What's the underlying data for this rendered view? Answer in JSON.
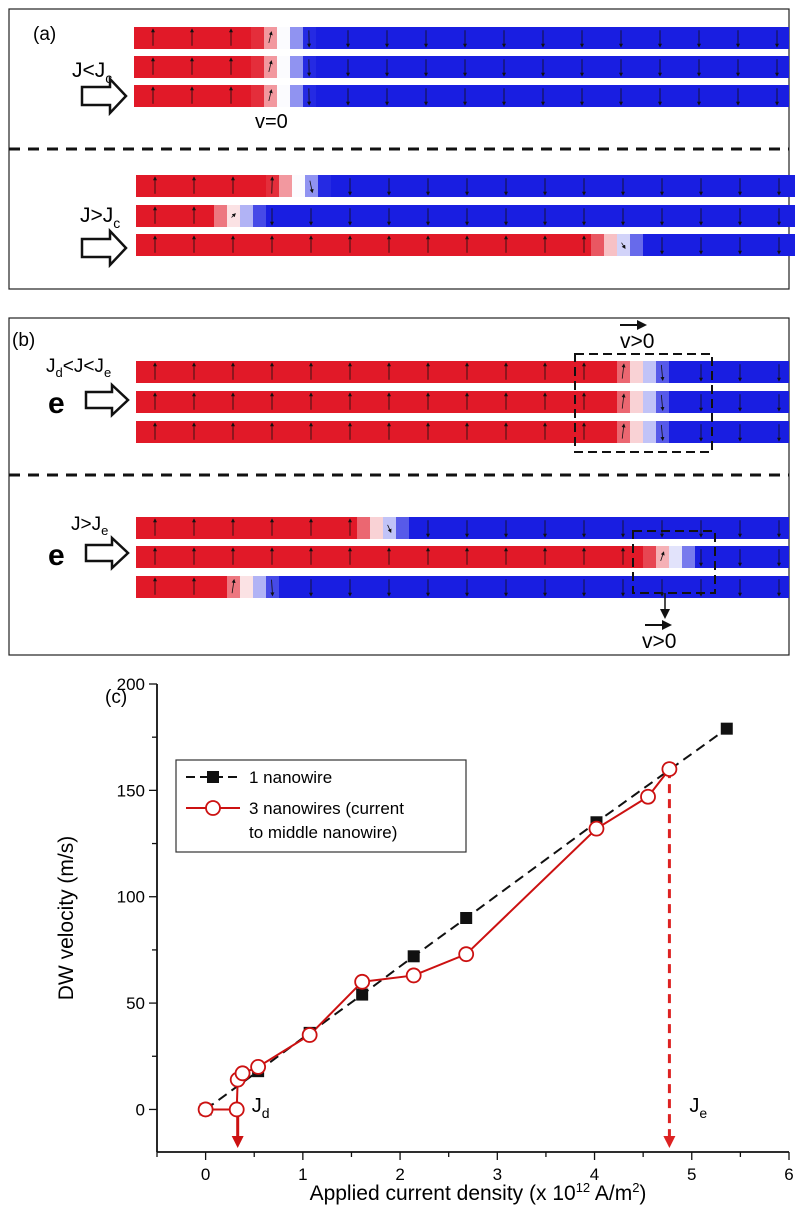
{
  "panel_a": {
    "label": "(a)",
    "top_current": {
      "main": "J<J",
      "sub": "c"
    },
    "bottom_current": {
      "main": "J>J",
      "sub": "c"
    },
    "velocity_label": "v=0"
  },
  "panel_b": {
    "label": "(b)",
    "top_current": {
      "p1": "J",
      "s1": "d",
      "p2": "<J<J",
      "s2": "e"
    },
    "bottom_current": {
      "main": "J>J",
      "sub": "e"
    },
    "electron_label": "e",
    "velocity_label": "v>0"
  },
  "chart_data": {
    "type": "line",
    "panel_label": "(c)",
    "title": "",
    "xlabel": {
      "main": "Applied current density (x 10",
      "sup": "12",
      "mid": " A/m",
      "sup2": "2",
      "end": ")"
    },
    "ylabel": "DW velocity (m/s)",
    "xlim": [
      -0.5,
      6
    ],
    "ylim": [
      -20,
      200
    ],
    "xticks": [
      0,
      1,
      2,
      3,
      4,
      5,
      6
    ],
    "yticks": [
      0,
      50,
      100,
      150,
      200
    ],
    "legend_position": "upper-left",
    "series": [
      {
        "name": "1 nanowire",
        "marker": "filled-square",
        "line": "dashed",
        "color": "#111111",
        "x": [
          0,
          0.54,
          1.07,
          1.61,
          2.14,
          2.68,
          4.02,
          5.36
        ],
        "y": [
          0,
          18,
          36,
          54,
          72,
          90,
          135,
          179
        ]
      },
      {
        "name": "3 nanowires (current to middle nanowire)",
        "legend_lines": [
          "3 nanowires (current",
          "to middle nanowire)"
        ],
        "marker": "open-circle",
        "line": "solid",
        "color": "#cc1111",
        "x": [
          0,
          0.32,
          0.33,
          0.38,
          0.54,
          1.07,
          1.61,
          2.14,
          2.68,
          4.02,
          4.55,
          4.77
        ],
        "y": [
          0,
          0,
          14,
          17,
          20,
          35,
          60,
          63,
          73,
          132,
          147,
          160
        ]
      }
    ],
    "annotations": [
      {
        "text": "J",
        "sub": "d",
        "x": 0.33,
        "color": "#cc1111",
        "style": "solid-arrow"
      },
      {
        "text": "J",
        "sub": "e",
        "x": 4.77,
        "color": "#dd2222",
        "style": "dashed-arrow"
      }
    ]
  }
}
